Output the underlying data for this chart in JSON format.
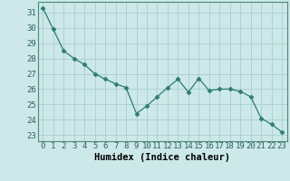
{
  "x": [
    0,
    1,
    2,
    3,
    4,
    5,
    6,
    7,
    8,
    9,
    10,
    11,
    12,
    13,
    14,
    15,
    16,
    17,
    18,
    19,
    20,
    21,
    22,
    23
  ],
  "y": [
    31.3,
    29.9,
    28.5,
    28.0,
    27.6,
    27.0,
    26.65,
    26.35,
    26.1,
    24.4,
    24.9,
    25.5,
    26.1,
    26.65,
    25.8,
    26.7,
    25.9,
    26.0,
    26.0,
    25.85,
    25.5,
    24.1,
    23.7,
    23.2
  ],
  "line_color": "#2e7d6e",
  "marker": "D",
  "marker_size": 2.5,
  "bg_color": "#cce8e8",
  "grid_color": "#aacece",
  "xlabel": "Humidex (Indice chaleur)",
  "ylabel_ticks": [
    23,
    24,
    25,
    26,
    27,
    28,
    29,
    30,
    31
  ],
  "ylim": [
    22.6,
    31.7
  ],
  "xlim": [
    -0.5,
    23.5
  ],
  "xlabel_fontsize": 7.5,
  "tick_fontsize": 6.5,
  "spine_color": "#4a8a7a"
}
